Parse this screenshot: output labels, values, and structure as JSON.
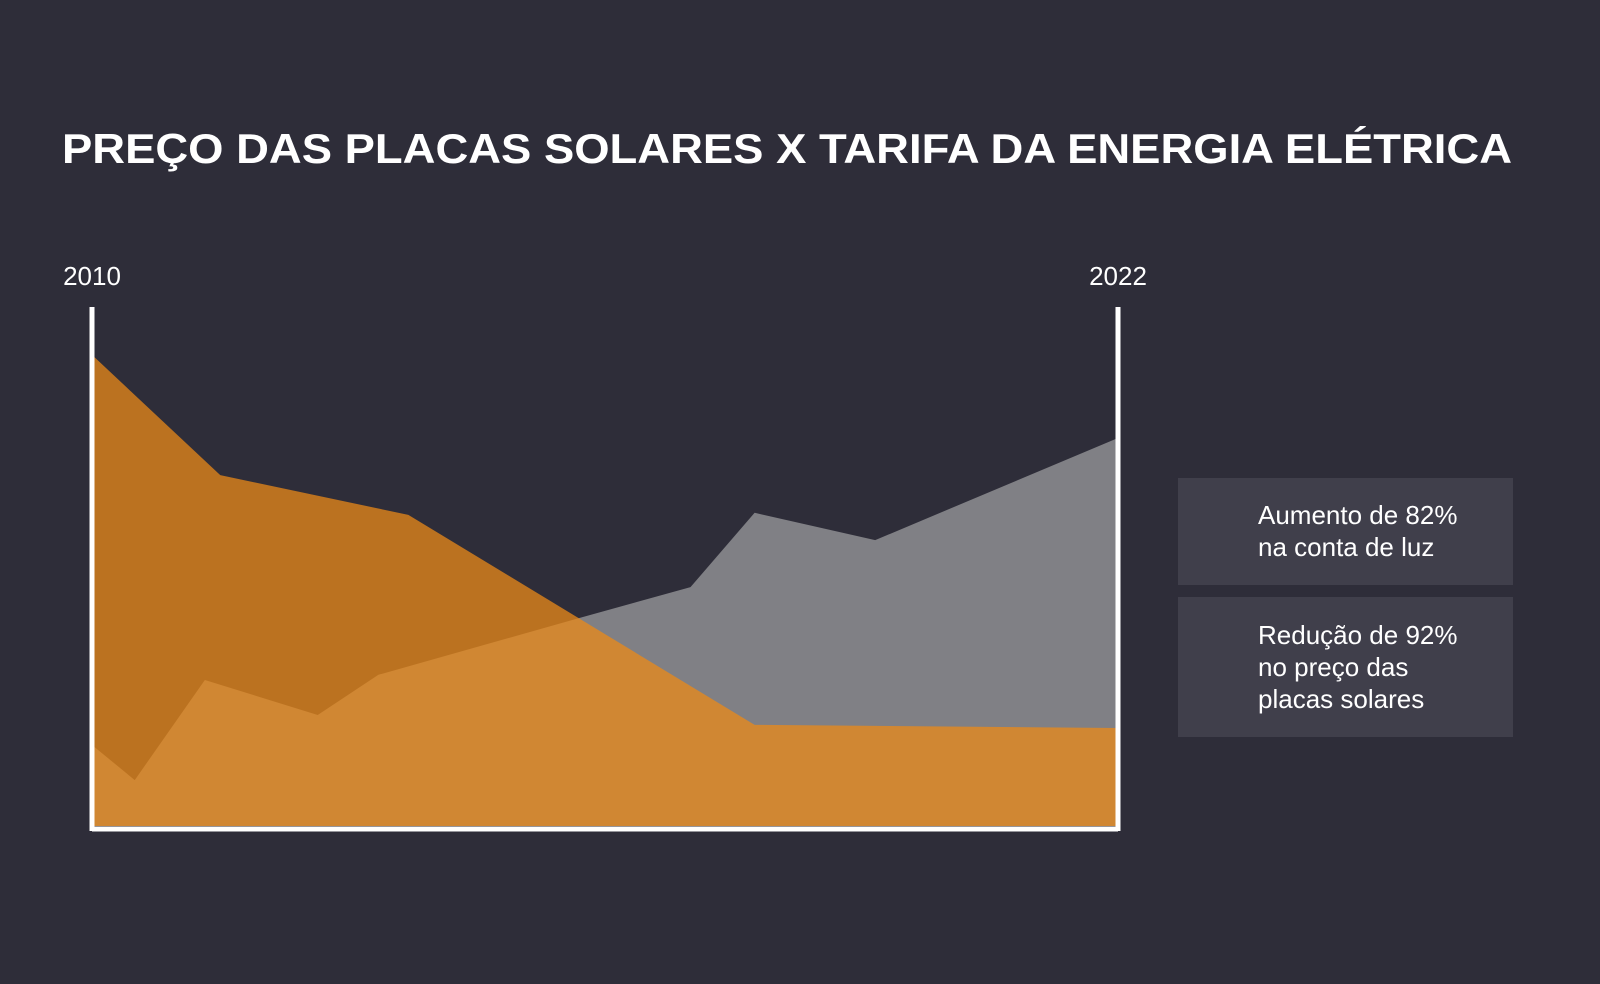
{
  "chart_data": {
    "type": "area",
    "title": "PREÇO DAS PLACAS SOLARES X TARIFA DA ENERGIA ELÉTRICA",
    "xlim": [
      2010,
      2022
    ],
    "xticks": [
      2010,
      2022
    ],
    "ylim": [
      0,
      100
    ],
    "series": [
      {
        "name": "Aumento de 82% na conta de luz",
        "color": "#808085",
        "x": [
          2010,
          2010.5,
          2011.32,
          2012.64,
          2013.35,
          2015.7,
          2017.0,
          2017.75,
          2019.16,
          2022
        ],
        "values": [
          15.7,
          8.9,
          28.3,
          21.5,
          29.3,
          40.3,
          46.3,
          60.7,
          55.4,
          75.2
        ]
      },
      {
        "name": "Redução de 92% no preço das placas solares",
        "color": "#eb8a18",
        "x": [
          2010,
          2011.5,
          2013.7,
          2017.75,
          2022
        ],
        "values": [
          91.3,
          68,
          60.3,
          19.6,
          19
        ]
      }
    ]
  }
}
